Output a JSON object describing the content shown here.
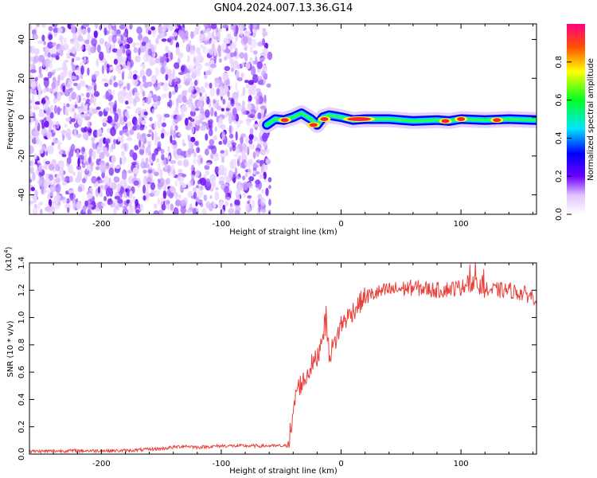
{
  "title": "GN04.2024.007.13.36.G14",
  "chart_data": [
    {
      "type": "heatmap",
      "xlabel": "Height of straight line (km)",
      "ylabel": "Frequency (Hz)",
      "xlim": [
        -260,
        163
      ],
      "ylim": [
        -50,
        48
      ],
      "x_ticks": [
        -200,
        -100,
        0,
        100
      ],
      "y_ticks": [
        -40,
        -20,
        0,
        20,
        40
      ],
      "colorbar": {
        "label": "Normalized spectral amplitude",
        "range": [
          0,
          1
        ],
        "ticks": [
          "0.0",
          "0.2",
          "0.4",
          "0.6",
          "0.8"
        ]
      },
      "noise_region_x": [
        -260,
        -62
      ],
      "signal_track": {
        "x": [
          -62,
          -55,
          -48,
          -40,
          -33,
          -25,
          -20,
          -15,
          -10,
          -5,
          0,
          10,
          20,
          40,
          60,
          80,
          90,
          100,
          120,
          140,
          163
        ],
        "y": [
          -4,
          -1,
          -1.5,
          0,
          2,
          -1,
          -4,
          0,
          1,
          0.5,
          0,
          -1.5,
          -1,
          -1,
          -2,
          -1.5,
          -2,
          -1,
          -1.5,
          -1,
          -1.5
        ]
      },
      "peaks": [
        {
          "x": 15,
          "y": -1
        },
        {
          "x": -23,
          "y": -4
        },
        {
          "x": 87,
          "y": -2
        },
        {
          "x": -47,
          "y": -1.5
        },
        {
          "x": -14,
          "y": -1
        },
        {
          "x": 100,
          "y": -1
        },
        {
          "x": 130,
          "y": -1.5
        }
      ]
    },
    {
      "type": "line",
      "xlabel": "Height of straight line (km)",
      "ylabel": "SNR (10 * v/v)",
      "y_multiplier": "(x10",
      "y_multiplier_exp": "4",
      "y_multiplier_close": ")",
      "xlim": [
        -260,
        163
      ],
      "ylim": [
        0,
        1.4
      ],
      "x_ticks": [
        -200,
        -100,
        0,
        100
      ],
      "y_ticks": [
        "0.0",
        "0.2",
        "0.4",
        "0.6",
        "0.8",
        "1.0",
        "1.2",
        "1.4"
      ],
      "color": "#e8403a",
      "series": [
        {
          "x": [
            -260,
            -220,
            -180,
            -150,
            -130,
            -120,
            -100,
            -80,
            -60,
            -45,
            -40,
            -38,
            -35,
            -30,
            -25,
            -20,
            -15,
            -12,
            -10,
            -5,
            0,
            10,
            20,
            30,
            40,
            60,
            80,
            100,
            110,
            120,
            140,
            163
          ],
          "values": [
            0.02,
            0.025,
            0.025,
            0.04,
            0.06,
            0.05,
            0.06,
            0.06,
            0.06,
            0.06,
            0.25,
            0.45,
            0.5,
            0.55,
            0.65,
            0.7,
            0.9,
            0.95,
            0.72,
            0.82,
            0.95,
            1.05,
            1.15,
            1.18,
            1.2,
            1.22,
            1.2,
            1.22,
            1.25,
            1.2,
            1.2,
            1.15
          ]
        }
      ]
    }
  ]
}
